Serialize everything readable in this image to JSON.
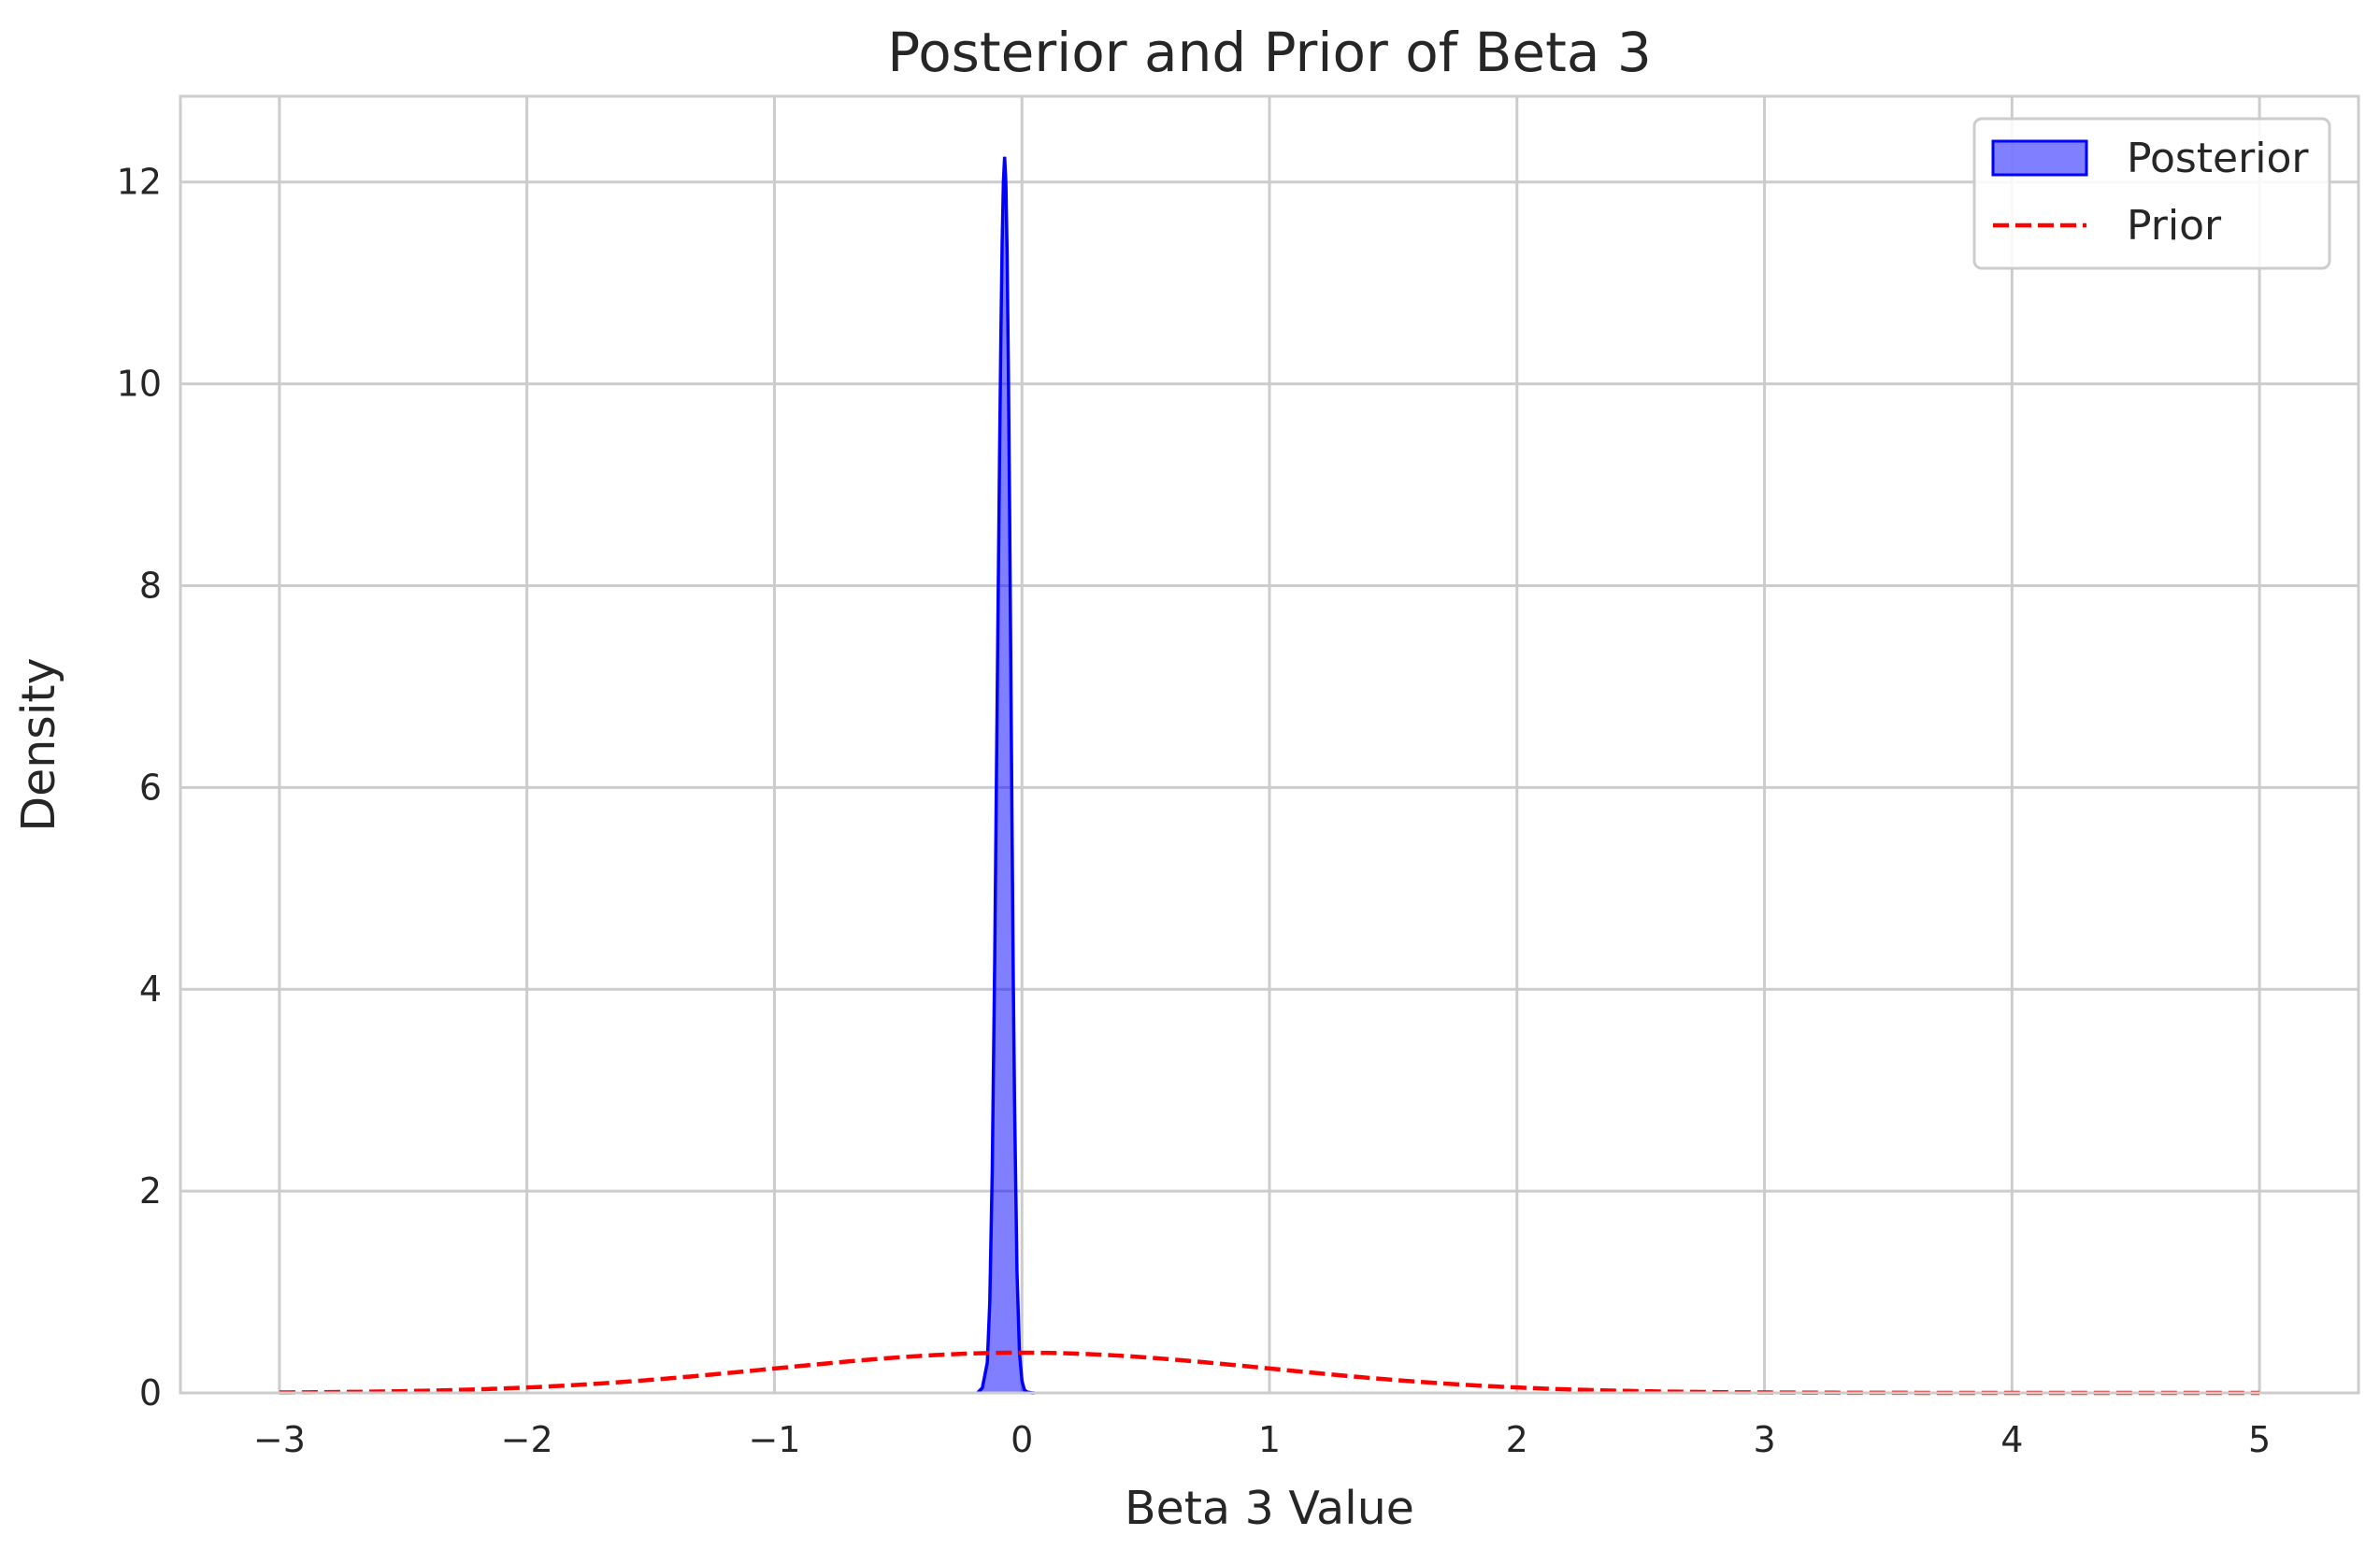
{
  "chart_data": {
    "type": "area",
    "title": "Posterior and Prior of Beta 3",
    "xlabel": "Beta 3 Value",
    "ylabel": "Density",
    "xlim": [
      -3.4,
      5.4
    ],
    "ylim": [
      0,
      12.85
    ],
    "x_ticks": [
      -3,
      -2,
      -1,
      0,
      1,
      2,
      3,
      4,
      5
    ],
    "x_tick_labels": [
      "−3",
      "−2",
      "−1",
      "0",
      "1",
      "2",
      "3",
      "4",
      "5"
    ],
    "y_ticks": [
      0,
      2,
      4,
      6,
      8,
      10,
      12
    ],
    "y_tick_labels": [
      "0",
      "2",
      "4",
      "6",
      "8",
      "10",
      "12"
    ],
    "grid": true,
    "legend_position": "top-right",
    "series": [
      {
        "name": "Posterior",
        "kind": "filled-density",
        "color": "#0000ff",
        "fill_color": "#0000ff",
        "fill_opacity": 0.5,
        "x": [
          -0.18,
          -0.16,
          -0.14,
          -0.13,
          -0.12,
          -0.11,
          -0.1,
          -0.09,
          -0.085,
          -0.08,
          -0.075,
          -0.07,
          -0.065,
          -0.06,
          -0.055,
          -0.05,
          -0.045,
          -0.04,
          -0.035,
          -0.03,
          -0.02,
          -0.01,
          0.0,
          0.01,
          0.02,
          0.04,
          0.05
        ],
        "values": [
          0,
          0.05,
          0.3,
          0.9,
          2.2,
          4.3,
          6.9,
          9.4,
          10.5,
          11.4,
          12.0,
          12.25,
          12.0,
          11.3,
          10.2,
          8.8,
          7.2,
          5.6,
          4.1,
          2.9,
          1.2,
          0.4,
          0.12,
          0.03,
          0.01,
          0,
          0
        ]
      },
      {
        "name": "Prior",
        "kind": "dashed-line",
        "color": "#ff0000",
        "mean": 0,
        "sd": 1,
        "x_range": [
          -3,
          5
        ]
      }
    ]
  }
}
